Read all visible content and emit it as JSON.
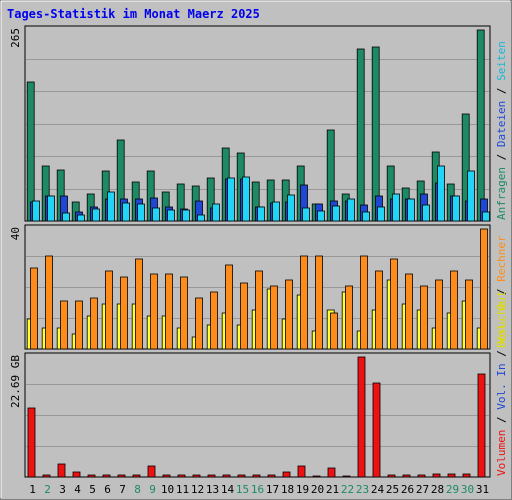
{
  "title": "Tages-Statistik im Monat Maerz 2025",
  "colors": {
    "background": "#c0c0c0",
    "title": "#0000ee",
    "grid": "#999999",
    "border": "#808080",
    "anfragen": "#1d8a64",
    "dateien": "#1f47d6",
    "seiten": "#22d4f5",
    "besuche": "#ffff33",
    "rechner": "#ff8c1a",
    "volumen": "#ee1111",
    "weekend_day": "#1d8a64",
    "weekday": "#000000"
  },
  "legends": {
    "top": [
      {
        "text": "Anfragen",
        "color": "#1d8a64"
      },
      {
        "text": " / ",
        "color": "#000000"
      },
      {
        "text": "Dateien",
        "color": "#1f47d6"
      },
      {
        "text": " / ",
        "color": "#000000"
      },
      {
        "text": "Seiten",
        "color": "#16b7d8"
      }
    ],
    "middle": [
      {
        "text": "Besuche",
        "color": "#dddd00"
      },
      {
        "text": " / ",
        "color": "#000000"
      },
      {
        "text": "Rechner",
        "color": "#ff8c1a"
      }
    ],
    "bottom": [
      {
        "text": "Volumen",
        "color": "#ee1111"
      },
      {
        "text": " / ",
        "color": "#000000"
      },
      {
        "text": "Vol. In",
        "color": "#1f47d6"
      },
      {
        "text": " / ",
        "color": "#000000"
      },
      {
        "text": "Vol. Out",
        "color": "#dddd00"
      }
    ]
  },
  "chart_data": [
    {
      "type": "bar",
      "name": "Anfragen / Dateien / Seiten",
      "scale_label": "265",
      "ylim": [
        0,
        265
      ],
      "categories": [
        "1",
        "2",
        "3",
        "4",
        "5",
        "6",
        "7",
        "8",
        "9",
        "10",
        "11",
        "12",
        "13",
        "14",
        "15",
        "16",
        "17",
        "18",
        "19",
        "20",
        "21",
        "22",
        "23",
        "24",
        "25",
        "26",
        "27",
        "28",
        "29",
        "30",
        "31"
      ],
      "series": [
        {
          "name": "Anfragen",
          "values": [
            193,
            77,
            71,
            27,
            38,
            70,
            112,
            54,
            70,
            40,
            52,
            48,
            60,
            101,
            95,
            54,
            57,
            57,
            77,
            24,
            126,
            38,
            238,
            242,
            76,
            46,
            56,
            96,
            52,
            148,
            265
          ]
        },
        {
          "name": "Dateien",
          "values": [
            26,
            35,
            35,
            13,
            20,
            30,
            30,
            30,
            32,
            19,
            17,
            28,
            18,
            58,
            58,
            20,
            25,
            27,
            50,
            24,
            28,
            28,
            22,
            34,
            31,
            30,
            38,
            53,
            35,
            28,
            31
          ]
        },
        {
          "name": "Seiten",
          "values": [
            28,
            34,
            11,
            9,
            17,
            40,
            25,
            24,
            18,
            15,
            15,
            8,
            24,
            59,
            61,
            20,
            26,
            36,
            18,
            14,
            21,
            30,
            13,
            19,
            38,
            30,
            22,
            76,
            35,
            70,
            12
          ]
        }
      ]
    },
    {
      "type": "bar",
      "name": "Besuche / Rechner",
      "scale_label": "40",
      "ylim": [
        0,
        40
      ],
      "categories": [
        "1",
        "2",
        "3",
        "4",
        "5",
        "6",
        "7",
        "8",
        "9",
        "10",
        "11",
        "12",
        "13",
        "14",
        "15",
        "16",
        "17",
        "18",
        "19",
        "20",
        "21",
        "22",
        "23",
        "24",
        "25",
        "26",
        "27",
        "28",
        "29",
        "30",
        "31"
      ],
      "series": [
        {
          "name": "Besuche",
          "values": [
            10,
            7,
            7,
            5,
            11,
            15,
            15,
            15,
            11,
            11,
            7,
            4,
            8,
            12,
            8,
            13,
            20,
            10,
            18,
            6,
            13,
            19,
            6,
            13,
            23,
            15,
            13,
            7,
            12,
            16,
            7
          ]
        },
        {
          "name": "Rechner",
          "values": [
            27,
            31,
            16,
            16,
            17,
            26,
            24,
            30,
            25,
            25,
            24,
            17,
            19,
            28,
            22,
            26,
            21,
            23,
            31,
            31,
            12,
            21,
            31,
            26,
            30,
            25,
            21,
            23,
            26,
            23,
            40
          ]
        }
      ]
    },
    {
      "type": "bar",
      "name": "Volumen",
      "scale_label": "22.69 GB",
      "ylim": [
        0,
        22.69
      ],
      "categories": [
        "1",
        "2",
        "3",
        "4",
        "5",
        "6",
        "7",
        "8",
        "9",
        "10",
        "11",
        "12",
        "13",
        "14",
        "15",
        "16",
        "17",
        "18",
        "19",
        "20",
        "21",
        "22",
        "23",
        "24",
        "25",
        "26",
        "27",
        "28",
        "29",
        "30",
        "31"
      ],
      "series": [
        {
          "name": "Volumen",
          "values": [
            13.0,
            0.3,
            2.4,
            1.0,
            0.3,
            0.3,
            0.3,
            0.3,
            2.0,
            0.3,
            0.3,
            0.3,
            0.3,
            0.3,
            0.3,
            0.3,
            0.3,
            0.9,
            2.1,
            0.2,
            1.7,
            0.2,
            22.69,
            17.8,
            0.4,
            0.4,
            0.3,
            0.5,
            0.5,
            0.5,
            19.5
          ]
        }
      ]
    }
  ],
  "days": [
    {
      "label": "1",
      "weekend": false
    },
    {
      "label": "2",
      "weekend": true
    },
    {
      "label": "3",
      "weekend": false
    },
    {
      "label": "4",
      "weekend": false
    },
    {
      "label": "5",
      "weekend": false
    },
    {
      "label": "6",
      "weekend": false
    },
    {
      "label": "7",
      "weekend": false
    },
    {
      "label": "8",
      "weekend": true
    },
    {
      "label": "9",
      "weekend": true
    },
    {
      "label": "10",
      "weekend": false
    },
    {
      "label": "11",
      "weekend": false
    },
    {
      "label": "12",
      "weekend": false
    },
    {
      "label": "13",
      "weekend": false
    },
    {
      "label": "14",
      "weekend": false
    },
    {
      "label": "15",
      "weekend": true
    },
    {
      "label": "16",
      "weekend": true
    },
    {
      "label": "17",
      "weekend": false
    },
    {
      "label": "18",
      "weekend": false
    },
    {
      "label": "19",
      "weekend": false
    },
    {
      "label": "20",
      "weekend": false
    },
    {
      "label": "21",
      "weekend": false
    },
    {
      "label": "22",
      "weekend": true
    },
    {
      "label": "23",
      "weekend": true
    },
    {
      "label": "24",
      "weekend": false
    },
    {
      "label": "25",
      "weekend": false
    },
    {
      "label": "26",
      "weekend": false
    },
    {
      "label": "27",
      "weekend": false
    },
    {
      "label": "28",
      "weekend": false
    },
    {
      "label": "29",
      "weekend": true
    },
    {
      "label": "30",
      "weekend": true
    },
    {
      "label": "31",
      "weekend": false
    }
  ]
}
